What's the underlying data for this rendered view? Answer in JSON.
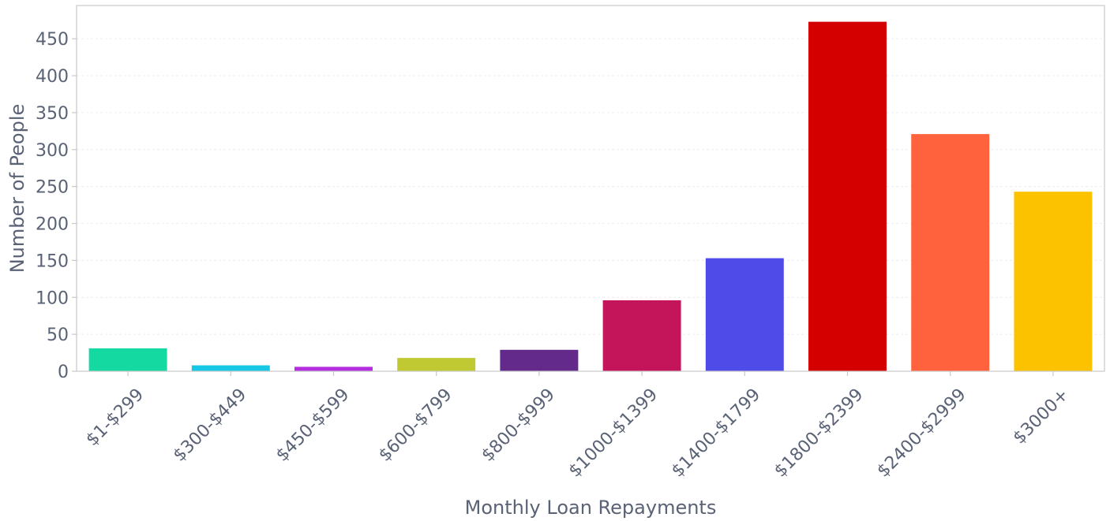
{
  "chart_data": {
    "type": "bar",
    "title": "",
    "xlabel": "Monthly Loan Repayments",
    "ylabel": "Number of People",
    "categories": [
      "$1-$299",
      "$300-$449",
      "$450-$599",
      "$600-$799",
      "$800-$999",
      "$1000-$1399",
      "$1400-$1799",
      "$1800-$2399",
      "$2400-$2999",
      "$3000+"
    ],
    "values": [
      31,
      8,
      6,
      18,
      29,
      96,
      153,
      473,
      321,
      243
    ],
    "colors": [
      "#14d9a0",
      "#16c8e6",
      "#b42ee0",
      "#c0c832",
      "#632a8c",
      "#c4145a",
      "#4f4be8",
      "#d40000",
      "#ff623c",
      "#fcc200"
    ],
    "ylim": [
      0,
      495
    ],
    "yticks": [
      0,
      50,
      100,
      150,
      200,
      250,
      300,
      350,
      400,
      450
    ],
    "grid": true,
    "legend": "none"
  }
}
